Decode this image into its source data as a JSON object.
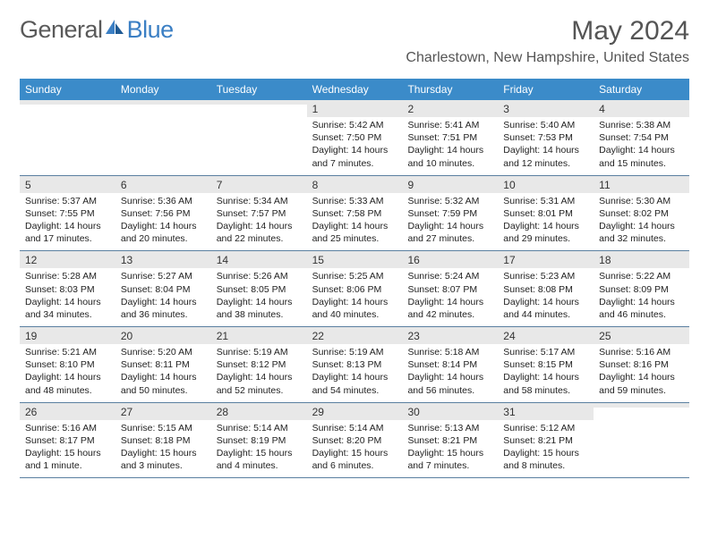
{
  "brand": {
    "part1": "General",
    "part2": "Blue"
  },
  "title": "May 2024",
  "location": "Charlestown, New Hampshire, United States",
  "colors": {
    "header_bg": "#3b8bc9",
    "header_text": "#ffffff",
    "daynum_bg": "#e8e8e8",
    "week_border": "#5a7fa0",
    "body_text": "#222222",
    "title_text": "#555555",
    "brand_gray": "#5a5a5a",
    "brand_blue": "#3b7fc4"
  },
  "day_headers": [
    "Sunday",
    "Monday",
    "Tuesday",
    "Wednesday",
    "Thursday",
    "Friday",
    "Saturday"
  ],
  "weeks": [
    [
      {
        "day": "",
        "sunrise": "",
        "sunset": "",
        "daylight": ""
      },
      {
        "day": "",
        "sunrise": "",
        "sunset": "",
        "daylight": ""
      },
      {
        "day": "",
        "sunrise": "",
        "sunset": "",
        "daylight": ""
      },
      {
        "day": "1",
        "sunrise": "Sunrise: 5:42 AM",
        "sunset": "Sunset: 7:50 PM",
        "daylight": "Daylight: 14 hours and 7 minutes."
      },
      {
        "day": "2",
        "sunrise": "Sunrise: 5:41 AM",
        "sunset": "Sunset: 7:51 PM",
        "daylight": "Daylight: 14 hours and 10 minutes."
      },
      {
        "day": "3",
        "sunrise": "Sunrise: 5:40 AM",
        "sunset": "Sunset: 7:53 PM",
        "daylight": "Daylight: 14 hours and 12 minutes."
      },
      {
        "day": "4",
        "sunrise": "Sunrise: 5:38 AM",
        "sunset": "Sunset: 7:54 PM",
        "daylight": "Daylight: 14 hours and 15 minutes."
      }
    ],
    [
      {
        "day": "5",
        "sunrise": "Sunrise: 5:37 AM",
        "sunset": "Sunset: 7:55 PM",
        "daylight": "Daylight: 14 hours and 17 minutes."
      },
      {
        "day": "6",
        "sunrise": "Sunrise: 5:36 AM",
        "sunset": "Sunset: 7:56 PM",
        "daylight": "Daylight: 14 hours and 20 minutes."
      },
      {
        "day": "7",
        "sunrise": "Sunrise: 5:34 AM",
        "sunset": "Sunset: 7:57 PM",
        "daylight": "Daylight: 14 hours and 22 minutes."
      },
      {
        "day": "8",
        "sunrise": "Sunrise: 5:33 AM",
        "sunset": "Sunset: 7:58 PM",
        "daylight": "Daylight: 14 hours and 25 minutes."
      },
      {
        "day": "9",
        "sunrise": "Sunrise: 5:32 AM",
        "sunset": "Sunset: 7:59 PM",
        "daylight": "Daylight: 14 hours and 27 minutes."
      },
      {
        "day": "10",
        "sunrise": "Sunrise: 5:31 AM",
        "sunset": "Sunset: 8:01 PM",
        "daylight": "Daylight: 14 hours and 29 minutes."
      },
      {
        "day": "11",
        "sunrise": "Sunrise: 5:30 AM",
        "sunset": "Sunset: 8:02 PM",
        "daylight": "Daylight: 14 hours and 32 minutes."
      }
    ],
    [
      {
        "day": "12",
        "sunrise": "Sunrise: 5:28 AM",
        "sunset": "Sunset: 8:03 PM",
        "daylight": "Daylight: 14 hours and 34 minutes."
      },
      {
        "day": "13",
        "sunrise": "Sunrise: 5:27 AM",
        "sunset": "Sunset: 8:04 PM",
        "daylight": "Daylight: 14 hours and 36 minutes."
      },
      {
        "day": "14",
        "sunrise": "Sunrise: 5:26 AM",
        "sunset": "Sunset: 8:05 PM",
        "daylight": "Daylight: 14 hours and 38 minutes."
      },
      {
        "day": "15",
        "sunrise": "Sunrise: 5:25 AM",
        "sunset": "Sunset: 8:06 PM",
        "daylight": "Daylight: 14 hours and 40 minutes."
      },
      {
        "day": "16",
        "sunrise": "Sunrise: 5:24 AM",
        "sunset": "Sunset: 8:07 PM",
        "daylight": "Daylight: 14 hours and 42 minutes."
      },
      {
        "day": "17",
        "sunrise": "Sunrise: 5:23 AM",
        "sunset": "Sunset: 8:08 PM",
        "daylight": "Daylight: 14 hours and 44 minutes."
      },
      {
        "day": "18",
        "sunrise": "Sunrise: 5:22 AM",
        "sunset": "Sunset: 8:09 PM",
        "daylight": "Daylight: 14 hours and 46 minutes."
      }
    ],
    [
      {
        "day": "19",
        "sunrise": "Sunrise: 5:21 AM",
        "sunset": "Sunset: 8:10 PM",
        "daylight": "Daylight: 14 hours and 48 minutes."
      },
      {
        "day": "20",
        "sunrise": "Sunrise: 5:20 AM",
        "sunset": "Sunset: 8:11 PM",
        "daylight": "Daylight: 14 hours and 50 minutes."
      },
      {
        "day": "21",
        "sunrise": "Sunrise: 5:19 AM",
        "sunset": "Sunset: 8:12 PM",
        "daylight": "Daylight: 14 hours and 52 minutes."
      },
      {
        "day": "22",
        "sunrise": "Sunrise: 5:19 AM",
        "sunset": "Sunset: 8:13 PM",
        "daylight": "Daylight: 14 hours and 54 minutes."
      },
      {
        "day": "23",
        "sunrise": "Sunrise: 5:18 AM",
        "sunset": "Sunset: 8:14 PM",
        "daylight": "Daylight: 14 hours and 56 minutes."
      },
      {
        "day": "24",
        "sunrise": "Sunrise: 5:17 AM",
        "sunset": "Sunset: 8:15 PM",
        "daylight": "Daylight: 14 hours and 58 minutes."
      },
      {
        "day": "25",
        "sunrise": "Sunrise: 5:16 AM",
        "sunset": "Sunset: 8:16 PM",
        "daylight": "Daylight: 14 hours and 59 minutes."
      }
    ],
    [
      {
        "day": "26",
        "sunrise": "Sunrise: 5:16 AM",
        "sunset": "Sunset: 8:17 PM",
        "daylight": "Daylight: 15 hours and 1 minute."
      },
      {
        "day": "27",
        "sunrise": "Sunrise: 5:15 AM",
        "sunset": "Sunset: 8:18 PM",
        "daylight": "Daylight: 15 hours and 3 minutes."
      },
      {
        "day": "28",
        "sunrise": "Sunrise: 5:14 AM",
        "sunset": "Sunset: 8:19 PM",
        "daylight": "Daylight: 15 hours and 4 minutes."
      },
      {
        "day": "29",
        "sunrise": "Sunrise: 5:14 AM",
        "sunset": "Sunset: 8:20 PM",
        "daylight": "Daylight: 15 hours and 6 minutes."
      },
      {
        "day": "30",
        "sunrise": "Sunrise: 5:13 AM",
        "sunset": "Sunset: 8:21 PM",
        "daylight": "Daylight: 15 hours and 7 minutes."
      },
      {
        "day": "31",
        "sunrise": "Sunrise: 5:12 AM",
        "sunset": "Sunset: 8:21 PM",
        "daylight": "Daylight: 15 hours and 8 minutes."
      },
      {
        "day": "",
        "sunrise": "",
        "sunset": "",
        "daylight": ""
      }
    ]
  ]
}
